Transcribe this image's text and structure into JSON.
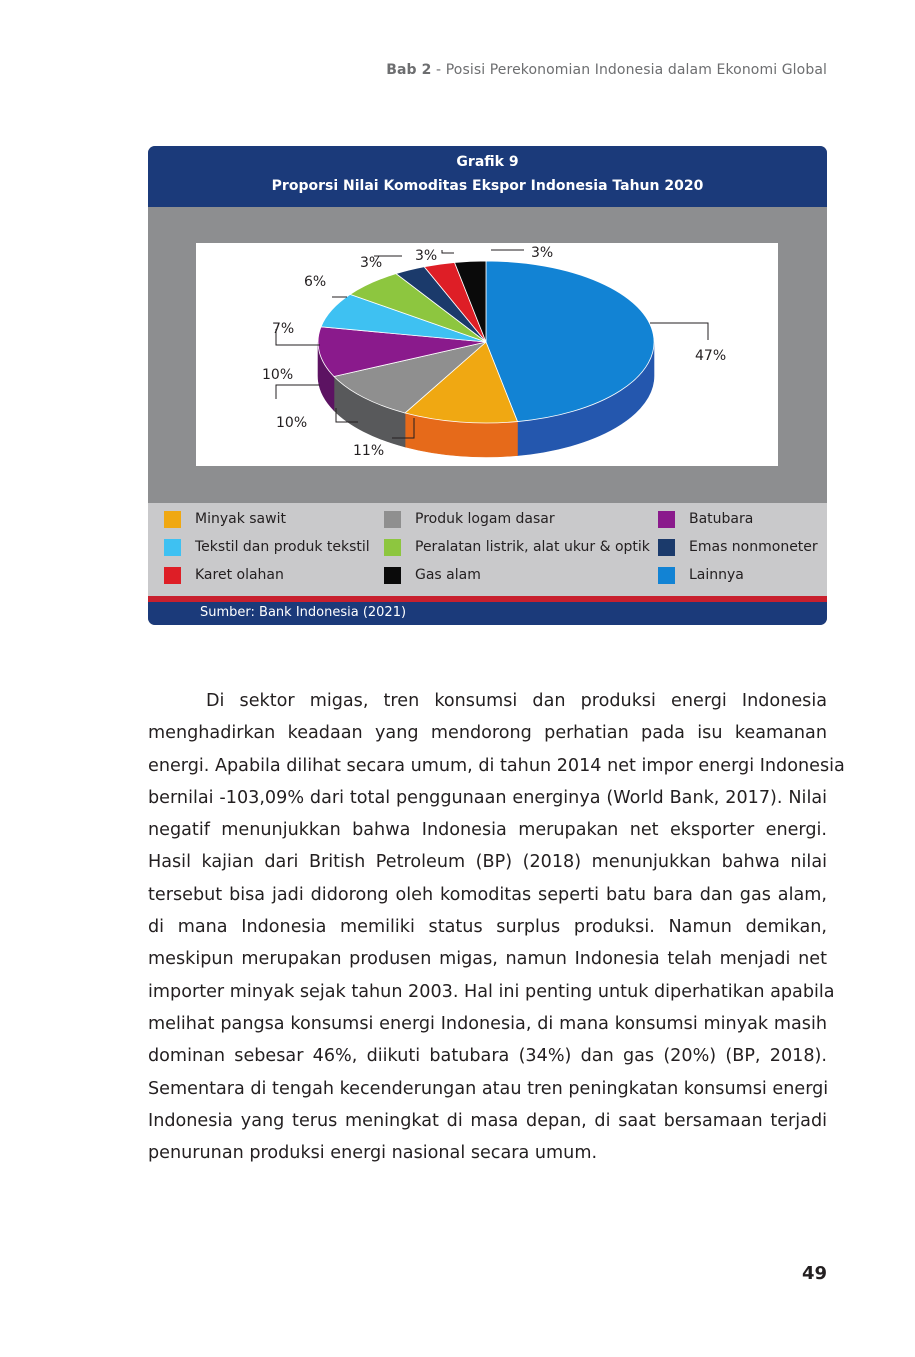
{
  "running_header": {
    "chapter": "Bab 2",
    "title": " - Posisi Perekonomian Indonesia dalam Ekonomi Global"
  },
  "figure": {
    "number": "Grafik 9",
    "title": "Proporsi Nilai Komoditas Ekspor Indonesia Tahun 2020",
    "source": "Sumber: Bank Indonesia (2021)"
  },
  "chart_data": {
    "type": "pie",
    "title": "Proporsi Nilai Komoditas Ekspor Indonesia Tahun 2020",
    "unit": "%",
    "legend_placement": "bottom",
    "slices": [
      {
        "name": "Lainnya",
        "value": 47,
        "label": "47%",
        "color": "#1283d4",
        "side": "#2457ae"
      },
      {
        "name": "Minyak sawit",
        "value": 11,
        "label": "11%",
        "color": "#f0a812",
        "side": "#e66a1a"
      },
      {
        "name": "Produk logam dasar",
        "value": 10,
        "label": "10%",
        "color": "#8f8f8f",
        "side": "#58595b"
      },
      {
        "name": "Batubara",
        "value": 10,
        "label": "10%",
        "color": "#8a1a8c",
        "side": "#5c1362"
      },
      {
        "name": "Tekstil dan produk tekstil",
        "value": 7,
        "label": "7%",
        "color": "#3ec1f2",
        "side": "#2a8fbf"
      },
      {
        "name": "Peralatan listrik, alat ukur & optik",
        "value": 6,
        "label": "6%",
        "color": "#8dc63f",
        "side": "#5e8a26"
      },
      {
        "name": "Emas nonmoneter",
        "value": 3,
        "label": "3%",
        "color": "#1b3a6b",
        "side": "#102445"
      },
      {
        "name": "Karet olahan",
        "value": 3,
        "label": "3%",
        "color": "#de1e26",
        "side": "#9e141a"
      },
      {
        "name": "Gas alam",
        "value": 3,
        "label": "3%",
        "color": "#0a0a0a",
        "side": "#000000"
      }
    ]
  },
  "legend": [
    {
      "label": "Minyak sawit",
      "color": "#f0a812"
    },
    {
      "label": "Produk logam dasar",
      "color": "#8f8f8f"
    },
    {
      "label": "Batubara",
      "color": "#8a1a8c"
    },
    {
      "label": "Tekstil dan produk tekstil",
      "color": "#3ec1f2"
    },
    {
      "label": "Peralatan listrik, alat ukur & optik",
      "color": "#8dc63f"
    },
    {
      "label": "Emas nonmoneter",
      "color": "#1b3a6b"
    },
    {
      "label": "Karet olahan",
      "color": "#de1e26"
    },
    {
      "label": "Gas alam",
      "color": "#0a0a0a"
    },
    {
      "label": "Lainnya",
      "color": "#1283d4"
    }
  ],
  "body": {
    "lines": [
      "Di sektor migas, tren konsumsi dan produksi energi Indonesia",
      "menghadirkan keadaan yang mendorong perhatian pada isu keamanan",
      "energi. Apabila dilihat secara umum, di tahun 2014 net impor energi Indonesia",
      "bernilai -103,09% dari total penggunaan energinya (World Bank, 2017). Nilai",
      "negatif menunjukkan bahwa Indonesia merupakan net eksporter energi.",
      "Hasil kajian dari British Petroleum (BP) (2018) menunjukkan bahwa nilai",
      "tersebut bisa jadi didorong oleh komoditas seperti batu bara dan gas alam,",
      "di mana Indonesia memiliki status surplus produksi. Namun demikan,",
      "meskipun merupakan produsen migas, namun Indonesia telah menjadi net",
      "importer minyak sejak tahun 2003. Hal ini penting untuk diperhatikan apabila",
      "melihat pangsa konsumsi energi Indonesia, di mana konsumsi minyak masih",
      "dominan sebesar 46%, diikuti batubara (34%) dan gas (20%) (BP, 2018).",
      "Sementara di tengah kecenderungan atau tren peningkatan konsumsi energi",
      "Indonesia yang terus meningkat di masa depan, di saat bersamaan terjadi",
      "penurunan produksi energi nasional secara umum."
    ]
  },
  "page_number": "49"
}
